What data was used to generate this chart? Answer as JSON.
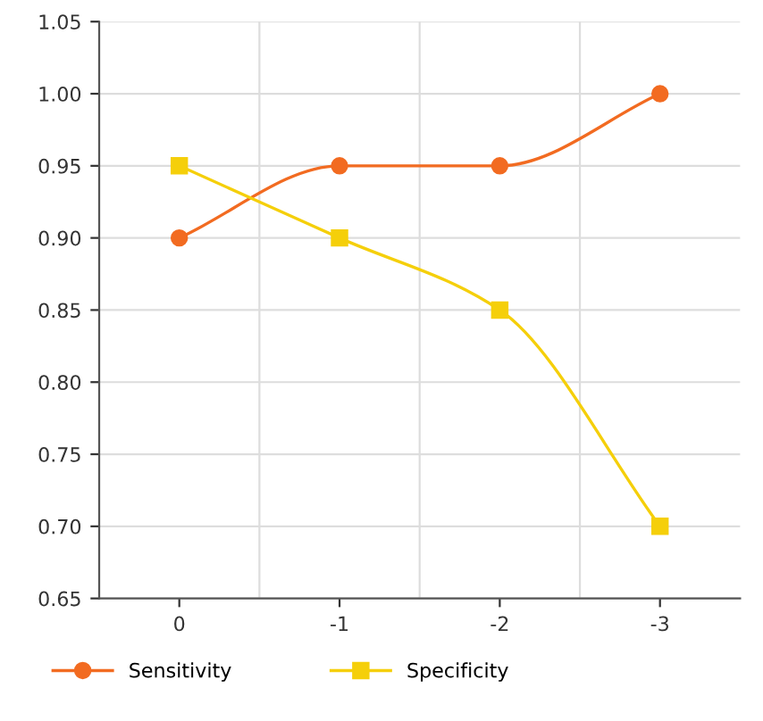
{
  "chart_data": {
    "type": "line",
    "categories": [
      "0",
      "-1",
      "-2",
      "-3"
    ],
    "series": [
      {
        "name": "Sensitivity",
        "color": "#f26b21",
        "marker": "circle",
        "values": [
          0.9,
          0.95,
          0.95,
          1.0
        ]
      },
      {
        "name": "Specificity",
        "color": "#f5cf0a",
        "marker": "square",
        "values": [
          0.95,
          0.9,
          0.85,
          0.7
        ]
      }
    ],
    "ylim": [
      0.65,
      1.05
    ],
    "yticks": [
      {
        "value": 0.65,
        "label": "0.65"
      },
      {
        "value": 0.7,
        "label": "0.70"
      },
      {
        "value": 0.75,
        "label": "0.75"
      },
      {
        "value": 0.8,
        "label": "0.80"
      },
      {
        "value": 0.85,
        "label": "0.85"
      },
      {
        "value": 0.9,
        "label": "0.90"
      },
      {
        "value": 0.95,
        "label": "0.95"
      },
      {
        "value": 1.0,
        "label": "1.00"
      },
      {
        "value": 1.05,
        "label": "1.05"
      }
    ],
    "grid": true,
    "legend": "bottom"
  }
}
